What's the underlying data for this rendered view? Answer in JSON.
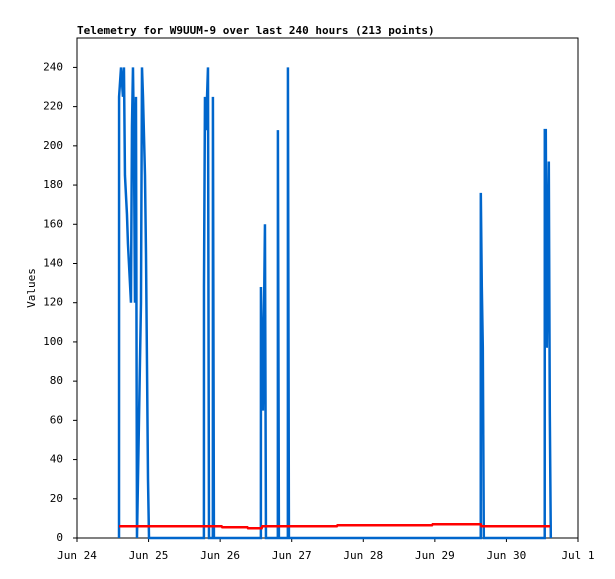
{
  "chart_data": {
    "type": "line",
    "title": "Telemetry for W9UUM-9 over last 240 hours (213 points)",
    "y_label": "Values",
    "xlim": [
      0,
      7
    ],
    "ylim": [
      0,
      255
    ],
    "xticks": [
      {
        "value": 0,
        "label": "Jun 24"
      },
      {
        "value": 1,
        "label": "Jun 25"
      },
      {
        "value": 2,
        "label": "Jun 26"
      },
      {
        "value": 3,
        "label": "Jun 27"
      },
      {
        "value": 4,
        "label": "Jun 28"
      },
      {
        "value": 5,
        "label": "Jun 29"
      },
      {
        "value": 6,
        "label": "Jun 30"
      },
      {
        "value": 7,
        "label": "Jul 1"
      }
    ],
    "yticks": [
      0,
      20,
      40,
      60,
      80,
      100,
      120,
      140,
      160,
      180,
      200,
      220,
      240
    ],
    "grid": false,
    "series": [
      {
        "color": "#0066cc",
        "x": [
          0.587,
          0.588,
          0.615,
          0.642,
          0.656,
          0.67,
          0.684,
          0.698,
          0.712,
          0.726,
          0.74,
          0.754,
          0.768,
          0.782,
          0.796,
          0.81,
          0.824,
          0.838,
          0.894,
          0.908,
          0.922,
          0.936,
          0.95,
          0.964,
          0.978,
          0.992,
          1.006,
          1.773,
          1.774,
          1.788,
          1.802,
          1.83,
          1.844,
          1.898,
          1.899,
          1.913,
          2.569,
          2.57,
          2.598,
          2.612,
          2.626,
          2.64,
          2.806,
          2.807,
          2.821,
          2.946,
          2.947,
          2.961,
          5.641,
          5.642,
          5.656,
          5.67,
          5.684,
          6.535,
          6.536,
          6.55,
          6.564,
          6.592,
          6.606,
          6.62
        ],
        "values": [
          0,
          225,
          240,
          225,
          240,
          185,
          175,
          165,
          150,
          140,
          130,
          120,
          210,
          240,
          200,
          120,
          225,
          0,
          120,
          240,
          225,
          205,
          185,
          145,
          88,
          30,
          0,
          0,
          128,
          225,
          208,
          240,
          0,
          0,
          225,
          0,
          0,
          128,
          65,
          112,
          160,
          0,
          0,
          208,
          0,
          0,
          240,
          0,
          0,
          176,
          128,
          97,
          0,
          0,
          208,
          208,
          97,
          192,
          64,
          0
        ]
      },
      {
        "color": "#ff0000",
        "x": [
          0.587,
          2.02,
          2.03,
          2.38,
          2.39,
          2.58,
          2.59,
          3.63,
          3.64,
          4.96,
          4.97,
          5.64,
          5.65,
          6.61
        ],
        "values": [
          6,
          6,
          5.5,
          5.5,
          5,
          5,
          6,
          6,
          6.5,
          6.5,
          7,
          7,
          6,
          6
        ]
      }
    ]
  }
}
